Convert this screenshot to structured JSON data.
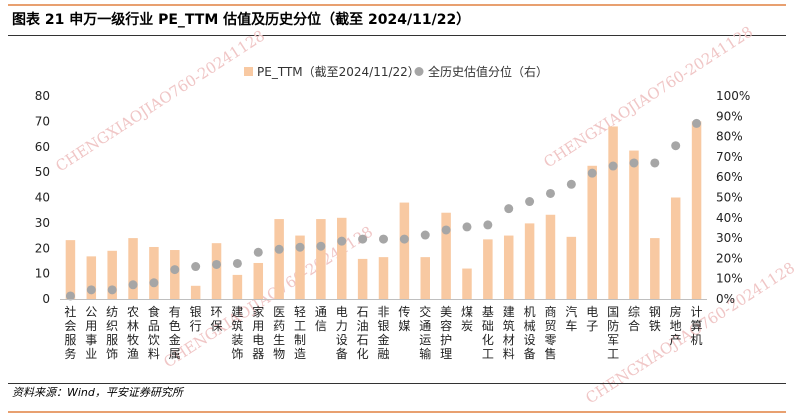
{
  "figure": {
    "title": "图表 21   申万一级行业 PE_TTM 估值及历史分位（截至 2024/11/22）",
    "source": "资料来源：Wind，平安证券研究所",
    "watermark": "CHENGXIAOJIAO760-20241128"
  },
  "colors": {
    "bar": "#f8c9a2",
    "dot": "#a6a6a6",
    "rule": "#e8a070"
  },
  "chart_data": {
    "type": "bar",
    "categories": [
      "社会服务",
      "公用事业",
      "纺织服饰",
      "农林牧渔",
      "食品饮料",
      "有色金属",
      "银行",
      "环保",
      "建筑装饰",
      "家用电器",
      "医药生物",
      "轻工制造",
      "通信",
      "电力设备",
      "石油石化",
      "非银金融",
      "传媒",
      "交通运输",
      "美容护理",
      "煤炭",
      "基础化工",
      "建筑材料",
      "机械设备",
      "商贸零售",
      "汽车",
      "电子",
      "国防军工",
      "综合",
      "钢铁",
      "房地产",
      "计算机"
    ],
    "y_left": {
      "min": 0,
      "max": 80,
      "ticks": [
        0,
        10,
        20,
        30,
        40,
        50,
        60,
        70,
        80
      ]
    },
    "y_right": {
      "min": 0,
      "max": 100,
      "ticks": [
        "0%",
        "10%",
        "20%",
        "30%",
        "40%",
        "50%",
        "60%",
        "70%",
        "80%",
        "90%",
        "100%"
      ]
    },
    "series": [
      {
        "name": "PE_TTM（截至2024/11/22）",
        "type": "bar",
        "axis": "left",
        "values": [
          23.2,
          16.8,
          19.0,
          24.0,
          20.5,
          19.3,
          5.2,
          22.0,
          9.5,
          14.2,
          31.5,
          25.0,
          31.5,
          32.0,
          15.8,
          16.5,
          38.0,
          16.5,
          34.0,
          12.0,
          23.5,
          25.0,
          29.8,
          33.2,
          24.5,
          52.5,
          68.0,
          58.5,
          24.0,
          40.0,
          70.0
        ]
      },
      {
        "name": "全历史估值分位（右）",
        "type": "scatter",
        "axis": "right",
        "unit": "%",
        "values": [
          1.5,
          4.5,
          4.5,
          7.0,
          8.0,
          14.5,
          16.0,
          17.0,
          17.5,
          23.0,
          24.5,
          25.5,
          26.0,
          28.5,
          29.5,
          29.5,
          29.5,
          31.5,
          34.0,
          35.5,
          36.5,
          44.5,
          48.0,
          52.0,
          56.5,
          62.0,
          65.5,
          67.0,
          67.0,
          75.5,
          86.5
        ]
      }
    ],
    "legend": {
      "placement": "top-center"
    },
    "grid": false
  }
}
